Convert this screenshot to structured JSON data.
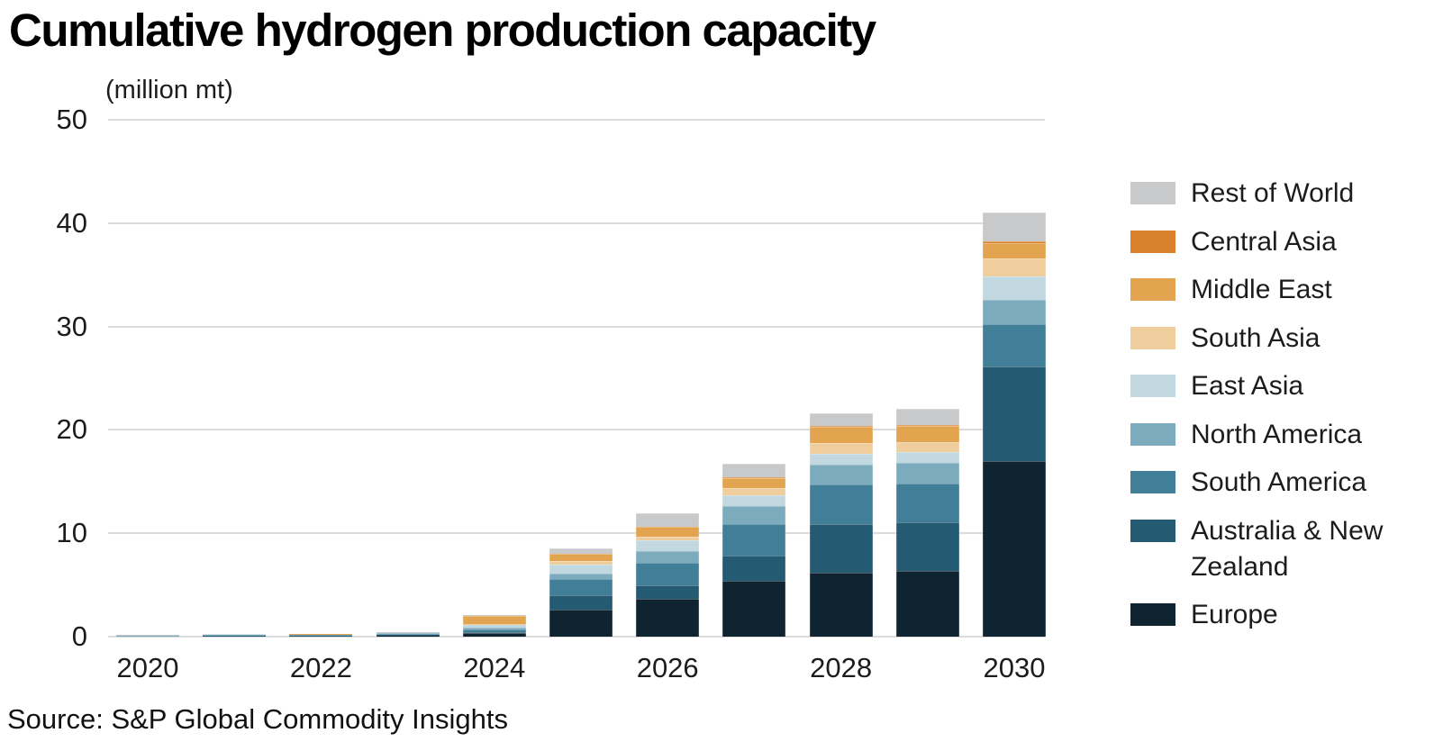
{
  "page": {
    "title": "Cumulative hydrogen production capacity",
    "units_label": "(million mt)",
    "source": "Source: S&P Global Commodity Insights"
  },
  "colors": {
    "background": "#ffffff",
    "gridline": "#dcdcdc",
    "text": "#1c1c1c"
  },
  "chart_data": {
    "type": "bar",
    "stacked": true,
    "title": "Cumulative hydrogen production capacity",
    "ylabel": "(million mt)",
    "xlabel": "",
    "ylim": [
      0,
      50
    ],
    "y_ticks": [
      0,
      10,
      20,
      30,
      40,
      50
    ],
    "grid": "horizontal",
    "legend_position": "right",
    "x": [
      2020,
      2021,
      2022,
      2023,
      2024,
      2025,
      2026,
      2027,
      2028,
      2029,
      2030
    ],
    "x_tick_labels": [
      "2020",
      "2022",
      "2024",
      "2026",
      "2028",
      "2030"
    ],
    "series": [
      {
        "name": "Europe",
        "color": "#0e2431",
        "values": [
          0.05,
          0.08,
          0.1,
          0.15,
          0.35,
          2.6,
          3.7,
          5.4,
          6.2,
          6.4,
          17.0
        ]
      },
      {
        "name": "Australia & New Zealand",
        "color": "#245a72",
        "values": [
          0.0,
          0.02,
          0.03,
          0.05,
          0.1,
          1.4,
          1.3,
          2.4,
          4.7,
          4.7,
          9.1
        ]
      },
      {
        "name": "South America",
        "color": "#417f99",
        "values": [
          0.03,
          0.05,
          0.06,
          0.08,
          0.25,
          1.6,
          2.1,
          3.1,
          3.8,
          3.7,
          4.1
        ]
      },
      {
        "name": "North America",
        "color": "#7babbc",
        "values": [
          0.04,
          0.04,
          0.05,
          0.06,
          0.15,
          0.5,
          1.2,
          1.7,
          1.9,
          2.0,
          2.4
        ]
      },
      {
        "name": "East Asia",
        "color": "#c1d8e0",
        "values": [
          0.02,
          0.03,
          0.04,
          0.06,
          0.35,
          0.9,
          1.0,
          1.1,
          1.1,
          1.1,
          2.2
        ]
      },
      {
        "name": "South Asia",
        "color": "#f0cd9c",
        "values": [
          0.0,
          0.0,
          0.0,
          0.0,
          0.05,
          0.3,
          0.4,
          0.7,
          1.0,
          0.9,
          1.8
        ]
      },
      {
        "name": "Middle East",
        "color": "#e3a450",
        "values": [
          0.0,
          0.0,
          0.02,
          0.03,
          0.75,
          0.7,
          0.9,
          0.9,
          1.6,
          1.6,
          1.5
        ]
      },
      {
        "name": "Central Asia",
        "color": "#d9812d",
        "values": [
          0.0,
          0.0,
          0.0,
          0.0,
          0.05,
          0.0,
          0.0,
          0.1,
          0.1,
          0.1,
          0.1
        ]
      },
      {
        "name": "Rest of World",
        "color": "#c7c9cb",
        "values": [
          0.01,
          0.0,
          0.0,
          0.02,
          0.05,
          0.5,
          1.3,
          1.3,
          1.2,
          1.5,
          2.8
        ]
      }
    ],
    "totals_by_year": [
      0.15,
      0.22,
      0.3,
      0.45,
      2.1,
      8.5,
      11.9,
      16.7,
      21.6,
      22.0,
      41.0
    ]
  }
}
